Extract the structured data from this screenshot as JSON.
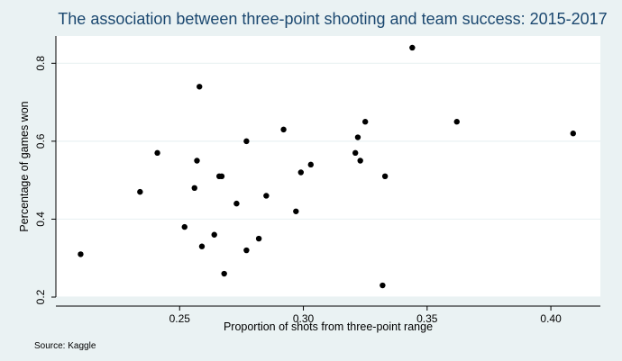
{
  "chart_data": {
    "type": "scatter",
    "title": "The association between three-point shooting and team success: 2015-2017",
    "xlabel": "Proportion of shots from three-point range",
    "ylabel": "Percentage of games won",
    "xlim": [
      0.2,
      0.42
    ],
    "ylim": [
      0.2,
      0.87
    ],
    "xticks": [
      0.25,
      0.3,
      0.35,
      0.4
    ],
    "xtick_labels": [
      "0.25",
      "0.30",
      "0.35",
      "0.40"
    ],
    "yticks": [
      0.2,
      0.4,
      0.6,
      0.8
    ],
    "ytick_labels": [
      "0.2",
      "0.4",
      "0.6",
      "0.8"
    ],
    "grid": "horizontal",
    "legend": "none",
    "point_color": "#000000",
    "points": [
      {
        "x": 0.21,
        "y": 0.31
      },
      {
        "x": 0.234,
        "y": 0.47
      },
      {
        "x": 0.241,
        "y": 0.57
      },
      {
        "x": 0.252,
        "y": 0.38
      },
      {
        "x": 0.256,
        "y": 0.48
      },
      {
        "x": 0.257,
        "y": 0.55
      },
      {
        "x": 0.258,
        "y": 0.74
      },
      {
        "x": 0.259,
        "y": 0.33
      },
      {
        "x": 0.264,
        "y": 0.36
      },
      {
        "x": 0.266,
        "y": 0.51
      },
      {
        "x": 0.267,
        "y": 0.51
      },
      {
        "x": 0.268,
        "y": 0.26
      },
      {
        "x": 0.273,
        "y": 0.44
      },
      {
        "x": 0.277,
        "y": 0.32
      },
      {
        "x": 0.277,
        "y": 0.6
      },
      {
        "x": 0.282,
        "y": 0.35
      },
      {
        "x": 0.285,
        "y": 0.46
      },
      {
        "x": 0.292,
        "y": 0.63
      },
      {
        "x": 0.297,
        "y": 0.42
      },
      {
        "x": 0.299,
        "y": 0.52
      },
      {
        "x": 0.303,
        "y": 0.54
      },
      {
        "x": 0.321,
        "y": 0.57
      },
      {
        "x": 0.322,
        "y": 0.61
      },
      {
        "x": 0.323,
        "y": 0.55
      },
      {
        "x": 0.325,
        "y": 0.65
      },
      {
        "x": 0.332,
        "y": 0.23
      },
      {
        "x": 0.333,
        "y": 0.51
      },
      {
        "x": 0.344,
        "y": 0.84
      },
      {
        "x": 0.362,
        "y": 0.65
      },
      {
        "x": 0.409,
        "y": 0.62
      }
    ]
  },
  "source_note": "Source: Kaggle"
}
